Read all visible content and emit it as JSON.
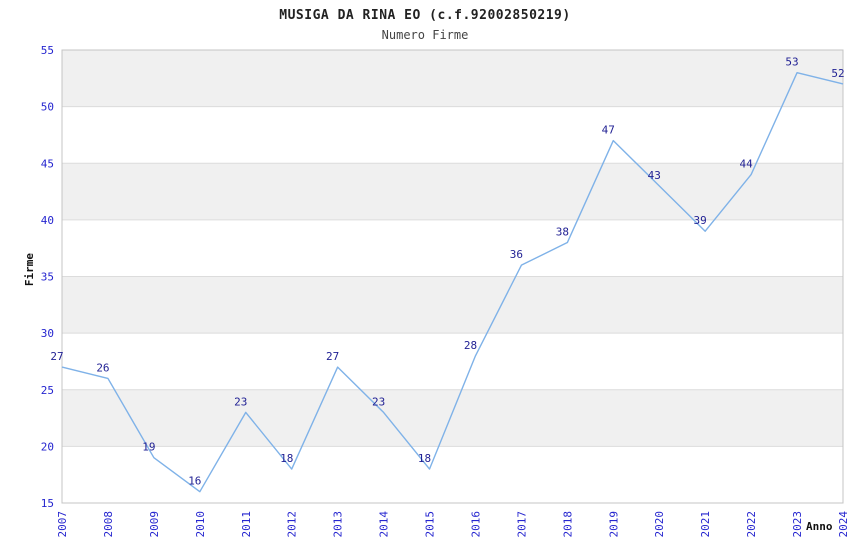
{
  "chart_data": {
    "type": "line",
    "title": "MUSIGA DA RINA EO (c.f.92002850219)",
    "subtitle": "Numero Firme",
    "xlabel": "Anno",
    "ylabel": "Firme",
    "categories": [
      "2007",
      "2008",
      "2009",
      "2010",
      "2011",
      "2012",
      "2013",
      "2014",
      "2015",
      "2016",
      "2017",
      "2018",
      "2019",
      "2020",
      "2021",
      "2022",
      "2023",
      "2024"
    ],
    "values": [
      27,
      26,
      19,
      16,
      23,
      18,
      27,
      23,
      18,
      28,
      36,
      38,
      47,
      43,
      39,
      44,
      53,
      52
    ],
    "ylim": [
      15,
      55
    ],
    "ytick_step": 5,
    "grid": "horizontal",
    "legend_position": "none",
    "colors": {
      "line": "#7fb2e8",
      "data_label": "#1f1f93",
      "tick_label": "#2525cf",
      "band": "#f0f0f0",
      "gridline": "#dcdcdc",
      "plot_border": "#c4c4c4",
      "background": "#ffffff"
    }
  }
}
